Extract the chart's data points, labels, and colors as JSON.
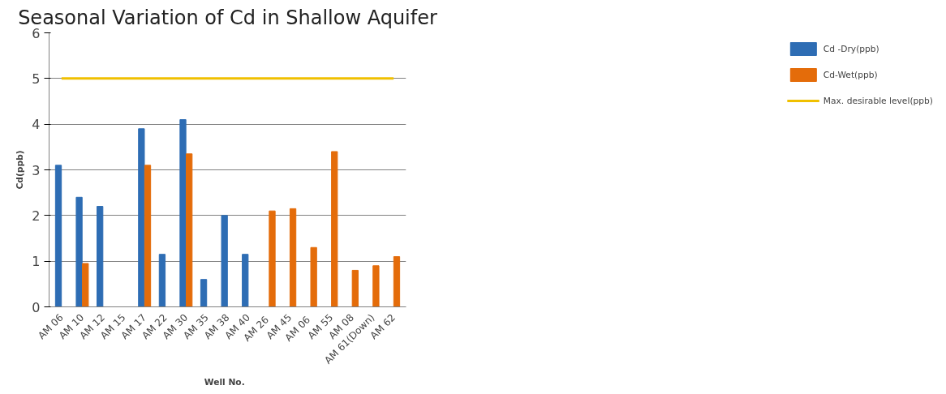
{
  "chart_data": {
    "type": "bar",
    "title": "Seasonal Variation of Cd in Shallow Aquifer",
    "xlabel": "Well   No.",
    "ylabel": "Cd(ppb)",
    "categories": [
      "AM 06",
      "AM 10",
      "AM 12",
      "AM 15",
      "AM 17",
      "AM 22",
      "AM 30",
      "AM 35",
      "AM 38",
      "AM 40",
      "AM  26",
      "AM 45",
      "AM  06",
      "AM 55",
      "AM 08",
      "AM 61(Down)",
      "AM 62"
    ],
    "series": [
      {
        "name": "Cd -Dry(ppb)",
        "color": "#2e6db4",
        "values": [
          3.1,
          2.4,
          2.2,
          null,
          3.9,
          1.15,
          4.1,
          0.6,
          2.0,
          1.15,
          null,
          null,
          null,
          null,
          null,
          null,
          null
        ]
      },
      {
        "name": "Cd-Wet(ppb)",
        "color": "#e46c0a",
        "values": [
          null,
          0.95,
          null,
          null,
          3.1,
          null,
          3.35,
          null,
          null,
          null,
          2.1,
          2.15,
          1.3,
          3.4,
          0.8,
          0.9,
          1.1
        ]
      }
    ],
    "ref_lines": [
      {
        "axis": "y",
        "value": 5,
        "label": "Max. desirable level(ppb)",
        "color": "#f0c000"
      }
    ],
    "ylim": [
      0,
      6
    ],
    "yticks": [
      0,
      1,
      2,
      3,
      4,
      5,
      6
    ],
    "grid": "y",
    "legend": "right"
  }
}
